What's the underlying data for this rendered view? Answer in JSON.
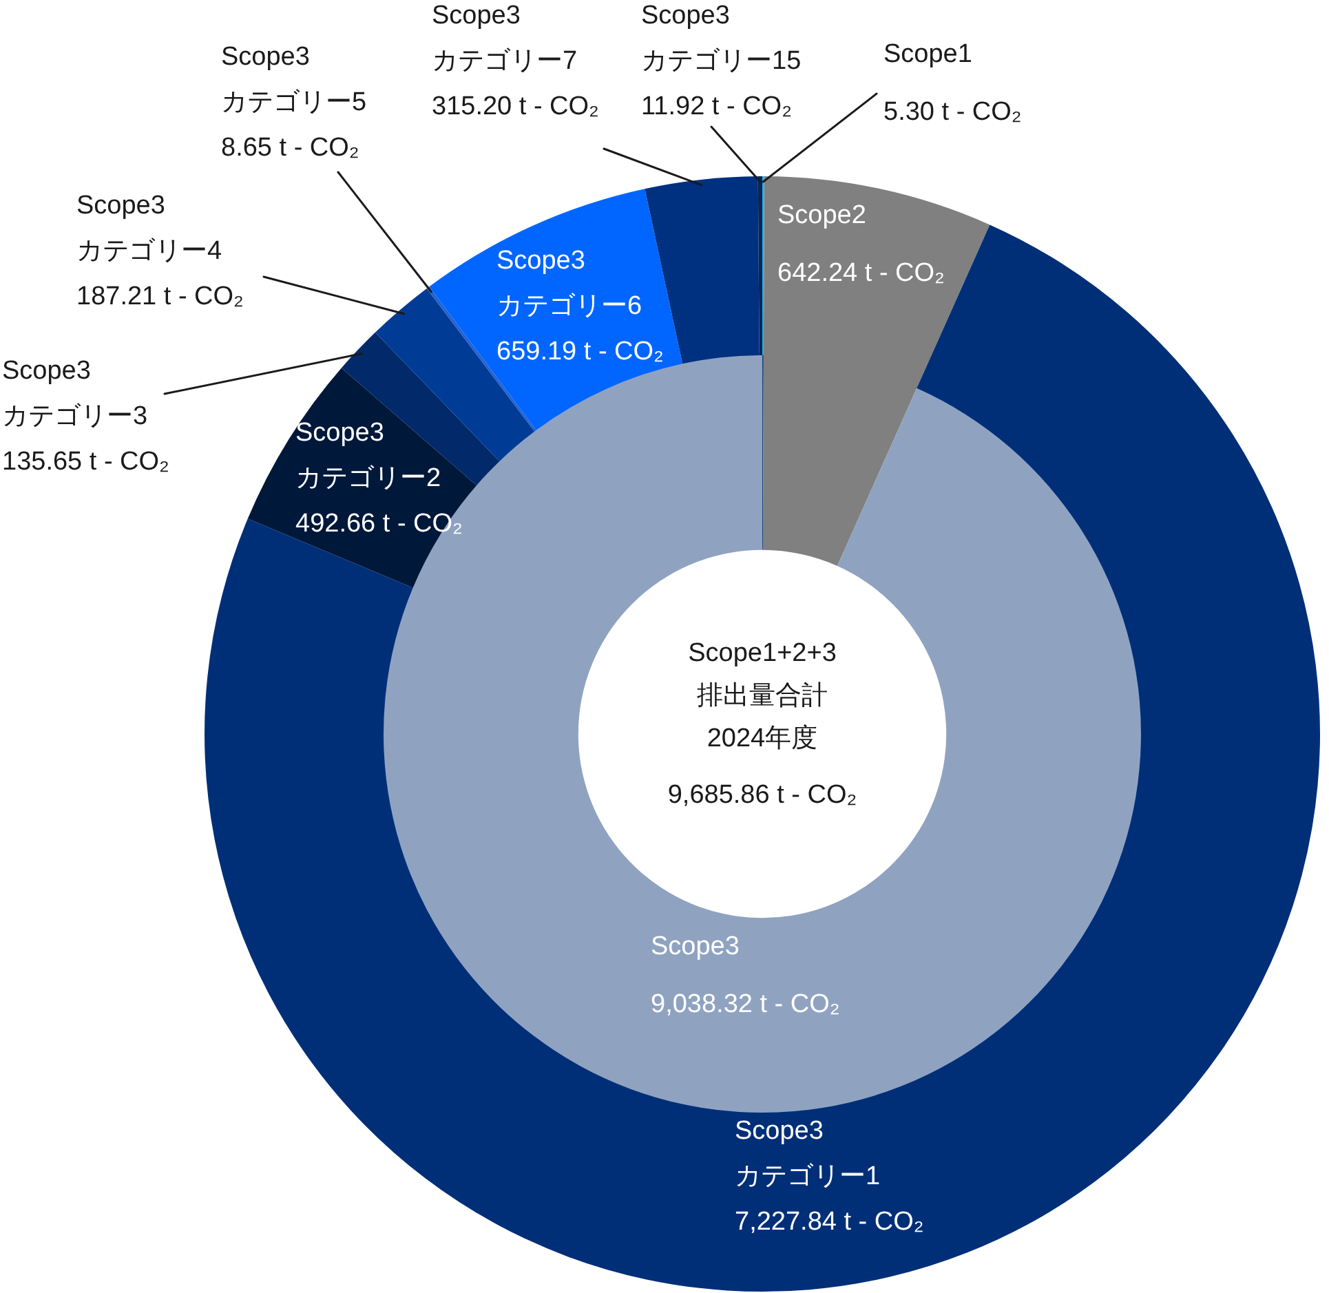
{
  "chart_data": [
    {
      "type": "donut",
      "categories": [
        "Scope1",
        "Scope2",
        "Scope3\nカテゴリー1",
        "Scope3\nカテゴリー2",
        "Scope3\nカテゴリー3",
        "Scope3\nカテゴリー4",
        "Scope3\nカテゴリー5",
        "Scope3\nカテゴリー6",
        "Scope3\nカテゴリー7",
        "Scope3\nカテゴリー15"
      ],
      "values": [
        5.3,
        642.24,
        7227.84,
        492.66,
        135.65,
        187.21,
        8.65,
        659.19,
        315.2,
        11.92
      ],
      "colors": [
        "#22b0e6",
        "#808080",
        "#002f78",
        "#00183a",
        "#02296a",
        "#003c96",
        "#2463d2",
        "#0066ff",
        "#003080",
        "#0b2656"
      ],
      "value_labels": [
        "5.30 t - CO₂",
        "642.24 t - CO₂",
        "7,227.84 t - CO₂",
        "492.66 t - CO₂",
        "135.65 t - CO₂",
        "187.21 t - CO₂",
        "8.65 t - CO₂",
        "659.19 t - CO₂",
        "315.20 t - CO₂",
        "11.92 t - CO₂"
      ]
    },
    {
      "type": "donut",
      "categories": [
        null,
        null,
        "Scope3"
      ],
      "values": [
        5.3,
        642.24,
        9038.32
      ],
      "colors": [
        "#1c3f78",
        "#808080",
        "#8fa3c1"
      ],
      "value_labels": [
        null,
        null,
        "9,038.32 t - CO₂"
      ],
      "annotations": [
        "Scope1+2+3\n排出量合計\n2024年度",
        "9,685.86 t - CO₂"
      ]
    }
  ]
}
